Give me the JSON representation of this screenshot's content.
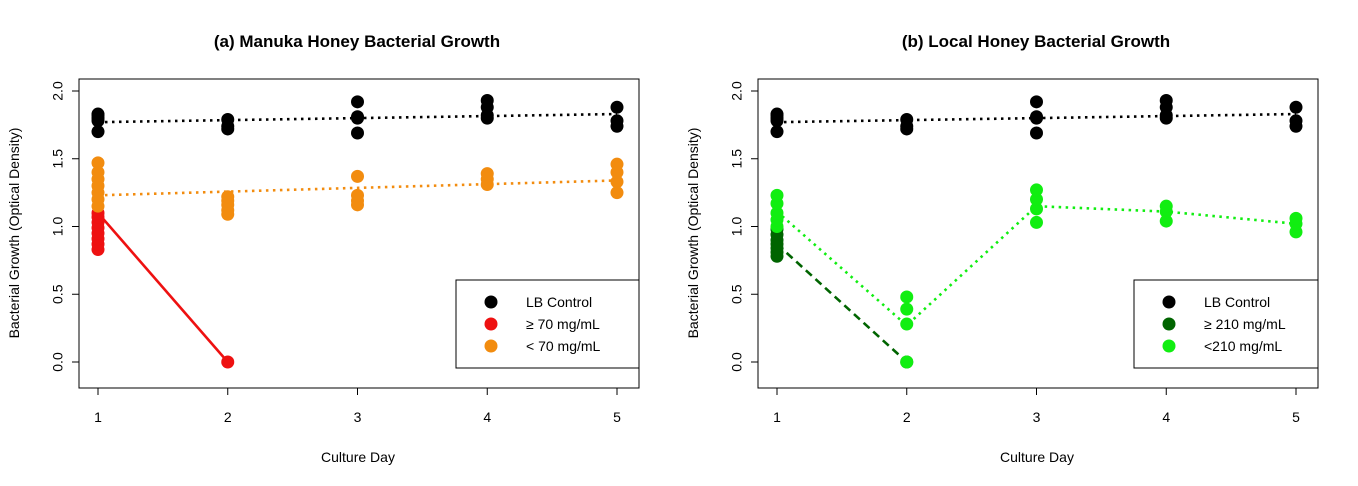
{
  "colors": {
    "black": "#000000",
    "red": "#ee1111",
    "orange": "#f28c0f",
    "darkgreen": "#006400",
    "green": "#11ee11"
  },
  "chart_data": [
    {
      "type": "scatter",
      "title": "(a) Manuka Honey Bacterial Growth",
      "xlabel": "Culture Day",
      "ylabel": "Bacterial Growth (Optical Density)",
      "xlim": [
        1,
        5
      ],
      "ylim": [
        -0.2,
        2.05
      ],
      "xticks": [
        "1",
        "2",
        "3",
        "4",
        "5"
      ],
      "yticks": [
        "0.0",
        "0.5",
        "1.0",
        "1.5",
        "2.0"
      ],
      "legend_position": "bottom-right",
      "series": [
        {
          "name": "LB Control",
          "color": "black",
          "points": [
            [
              1,
              1.7
            ],
            [
              1,
              1.78
            ],
            [
              1,
              1.8
            ],
            [
              1,
              1.82
            ],
            [
              1,
              1.83
            ],
            [
              2,
              1.72
            ],
            [
              2,
              1.74
            ],
            [
              2,
              1.79
            ],
            [
              3,
              1.69
            ],
            [
              3,
              1.8
            ],
            [
              3,
              1.81
            ],
            [
              3,
              1.92
            ],
            [
              4,
              1.8
            ],
            [
              4,
              1.82
            ],
            [
              4,
              1.88
            ],
            [
              4,
              1.93
            ],
            [
              5,
              1.74
            ],
            [
              5,
              1.78
            ],
            [
              5,
              1.88
            ]
          ],
          "line": [
            [
              1,
              1.77
            ],
            [
              5,
              1.83
            ]
          ],
          "line_style": "dotted"
        },
        {
          "name": "≥ 70 mg/mL",
          "color": "red",
          "points": [
            [
              1,
              0.83
            ],
            [
              1,
              0.87
            ],
            [
              1,
              0.91
            ],
            [
              1,
              0.95
            ],
            [
              1,
              0.99
            ],
            [
              1,
              1.03
            ],
            [
              1,
              1.07
            ],
            [
              1,
              1.1
            ],
            [
              2,
              0.0
            ]
          ],
          "line": [
            [
              1,
              1.1
            ],
            [
              2,
              0.0
            ]
          ],
          "line_style": "solid"
        },
        {
          "name": "< 70 mg/mL",
          "color": "orange",
          "points": [
            [
              1,
              1.15
            ],
            [
              1,
              1.2
            ],
            [
              1,
              1.25
            ],
            [
              1,
              1.3
            ],
            [
              1,
              1.35
            ],
            [
              1,
              1.4
            ],
            [
              1,
              1.47
            ],
            [
              2,
              1.09
            ],
            [
              2,
              1.12
            ],
            [
              2,
              1.16
            ],
            [
              2,
              1.19
            ],
            [
              2,
              1.22
            ],
            [
              3,
              1.16
            ],
            [
              3,
              1.19
            ],
            [
              3,
              1.23
            ],
            [
              3,
              1.37
            ],
            [
              4,
              1.31
            ],
            [
              4,
              1.35
            ],
            [
              4,
              1.39
            ],
            [
              5,
              1.25
            ],
            [
              5,
              1.33
            ],
            [
              5,
              1.4
            ],
            [
              5,
              1.46
            ]
          ],
          "line": [
            [
              1,
              1.23
            ],
            [
              5,
              1.34
            ]
          ],
          "line_style": "dotted"
        }
      ]
    },
    {
      "type": "scatter",
      "title": "(b) Local Honey Bacterial Growth",
      "xlabel": "Culture Day",
      "ylabel": "Bacterial Growth (Optical Density)",
      "xlim": [
        1,
        5
      ],
      "ylim": [
        -0.2,
        2.05
      ],
      "xticks": [
        "1",
        "2",
        "3",
        "4",
        "5"
      ],
      "yticks": [
        "0.0",
        "0.5",
        "1.0",
        "1.5",
        "2.0"
      ],
      "legend_position": "bottom-right",
      "series": [
        {
          "name": "LB Control",
          "color": "black",
          "points": [
            [
              1,
              1.7
            ],
            [
              1,
              1.78
            ],
            [
              1,
              1.8
            ],
            [
              1,
              1.82
            ],
            [
              1,
              1.83
            ],
            [
              2,
              1.72
            ],
            [
              2,
              1.74
            ],
            [
              2,
              1.79
            ],
            [
              3,
              1.69
            ],
            [
              3,
              1.8
            ],
            [
              3,
              1.81
            ],
            [
              3,
              1.92
            ],
            [
              4,
              1.8
            ],
            [
              4,
              1.82
            ],
            [
              4,
              1.88
            ],
            [
              4,
              1.93
            ],
            [
              5,
              1.74
            ],
            [
              5,
              1.78
            ],
            [
              5,
              1.88
            ]
          ],
          "line": [
            [
              1,
              1.77
            ],
            [
              5,
              1.83
            ]
          ],
          "line_style": "dotted"
        },
        {
          "name": "≥ 210 mg/mL",
          "color": "darkgreen",
          "points": [
            [
              1,
              0.78
            ],
            [
              1,
              0.81
            ],
            [
              1,
              0.84
            ],
            [
              1,
              0.87
            ],
            [
              1,
              0.9
            ],
            [
              1,
              0.94
            ],
            [
              1,
              0.98
            ],
            [
              2,
              0.0
            ]
          ],
          "line": [
            [
              1,
              0.87
            ],
            [
              2,
              0.0
            ]
          ],
          "line_style": "dashed"
        },
        {
          "name": "<210 mg/mL",
          "color": "green",
          "points": [
            [
              1,
              1.0
            ],
            [
              1,
              1.05
            ],
            [
              1,
              1.1
            ],
            [
              1,
              1.17
            ],
            [
              1,
              1.23
            ],
            [
              2,
              0.0
            ],
            [
              2,
              0.28
            ],
            [
              2,
              0.39
            ],
            [
              2,
              0.48
            ],
            [
              3,
              1.03
            ],
            [
              3,
              1.13
            ],
            [
              3,
              1.2
            ],
            [
              3,
              1.27
            ],
            [
              4,
              1.04
            ],
            [
              4,
              1.11
            ],
            [
              4,
              1.15
            ],
            [
              5,
              0.96
            ],
            [
              5,
              1.02
            ],
            [
              5,
              1.06
            ]
          ],
          "line": [
            [
              1,
              1.11
            ],
            [
              2,
              0.27
            ],
            [
              3,
              1.15
            ],
            [
              4,
              1.11
            ],
            [
              5,
              1.02
            ]
          ],
          "line_style": "dotted"
        }
      ]
    }
  ]
}
